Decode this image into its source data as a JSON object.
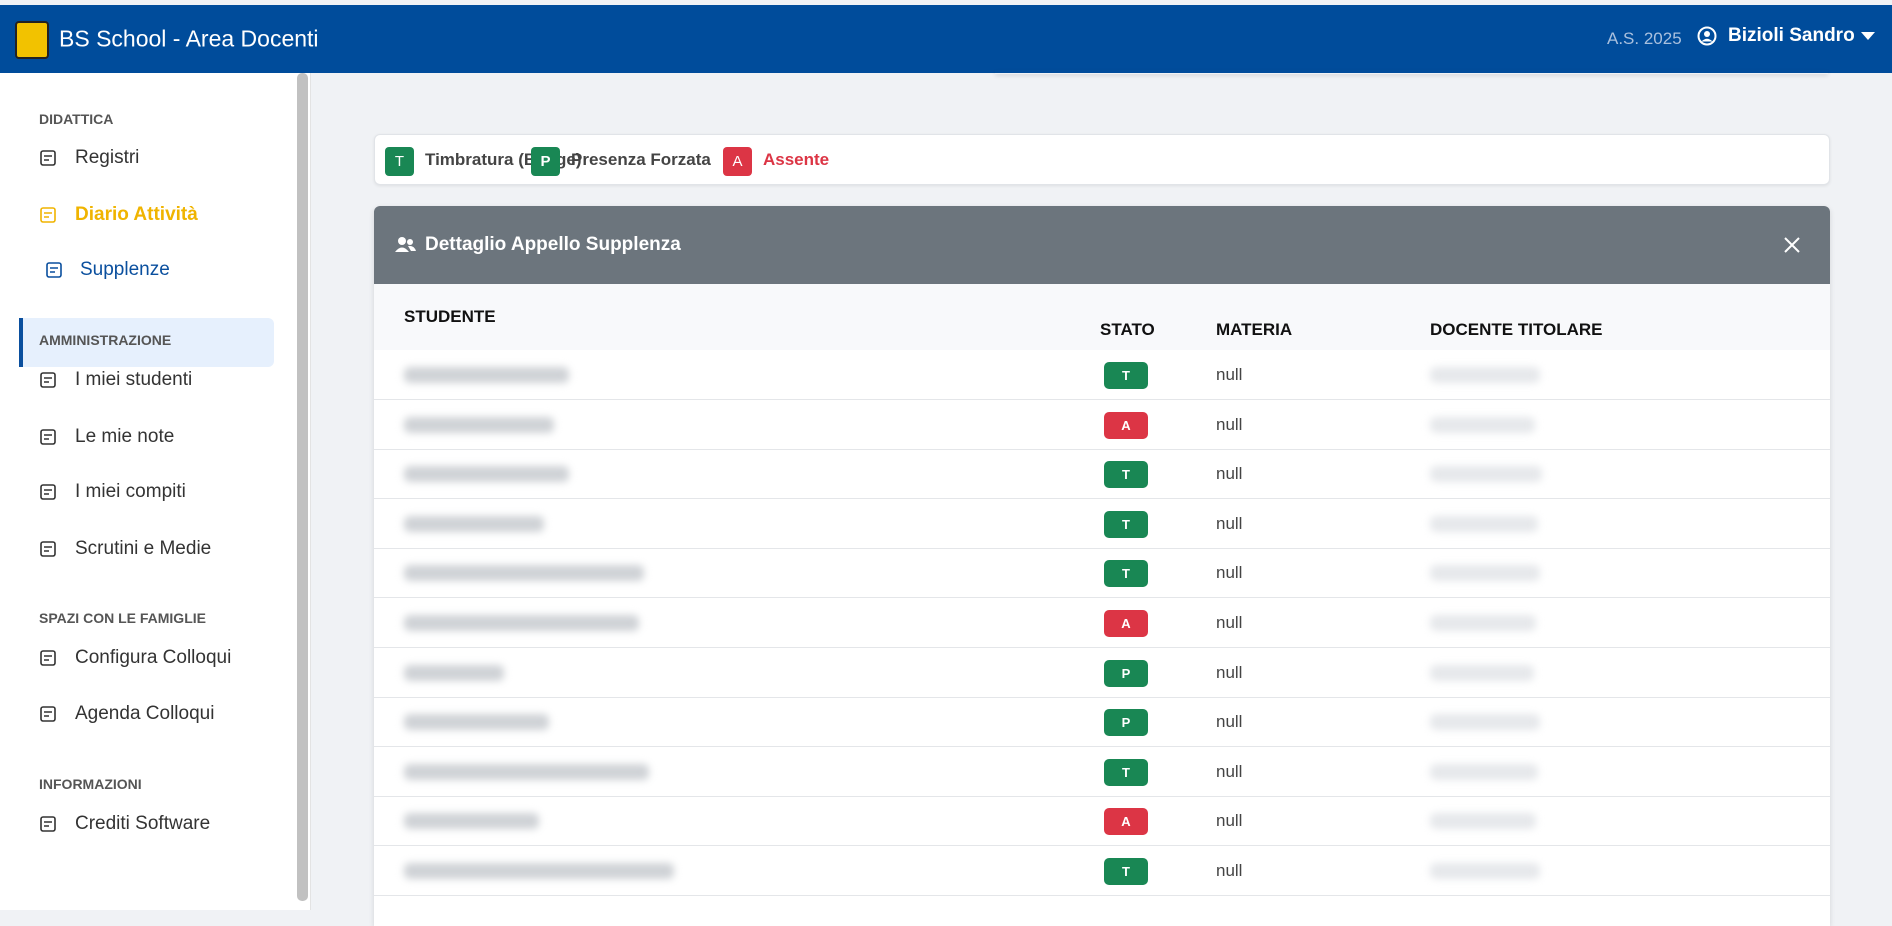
{
  "header": {
    "title": "BS School - Area Docenti",
    "year": "A.S. 2025",
    "user": "Bizioli Sandro"
  },
  "sidebar": {
    "sections": [
      {
        "title": "DIDATTICA",
        "items": [
          "Registri",
          "Diario Attività",
          "Supplenze"
        ]
      },
      {
        "title": "AMMINISTRAZIONE",
        "items": [
          "I miei studenti",
          "Le mie note",
          "I miei compiti",
          "Scrutini e Medie"
        ]
      },
      {
        "title": "SPAZI CON LE FAMIGLIE",
        "items": [
          "Configura Colloqui",
          "Agenda Colloqui"
        ]
      },
      {
        "title": "INFORMAZIONI",
        "items": [
          "Crediti Software"
        ]
      }
    ]
  },
  "legend": [
    {
      "code": "T",
      "label": "Timbratura (Badge)"
    },
    {
      "code": "P",
      "label": "Presenza Forzata"
    },
    {
      "code": "A",
      "label": "Assente"
    }
  ],
  "panel": {
    "title": "Dettaglio Appello Supplenza",
    "columns": [
      "STUDENTE",
      "STATO",
      "MATERIA",
      "DOCENTE TITOLARE"
    ],
    "rows": [
      [
        "T",
        "null"
      ],
      [
        "A",
        "null"
      ],
      [
        "T",
        "null"
      ],
      [
        "T",
        "null"
      ],
      [
        "T",
        "null"
      ],
      [
        "A",
        "null"
      ],
      [
        "P",
        "null"
      ],
      [
        "P",
        "null"
      ],
      [
        "T",
        "null"
      ],
      [
        "A",
        "null"
      ],
      [
        "T",
        "null"
      ]
    ]
  }
}
